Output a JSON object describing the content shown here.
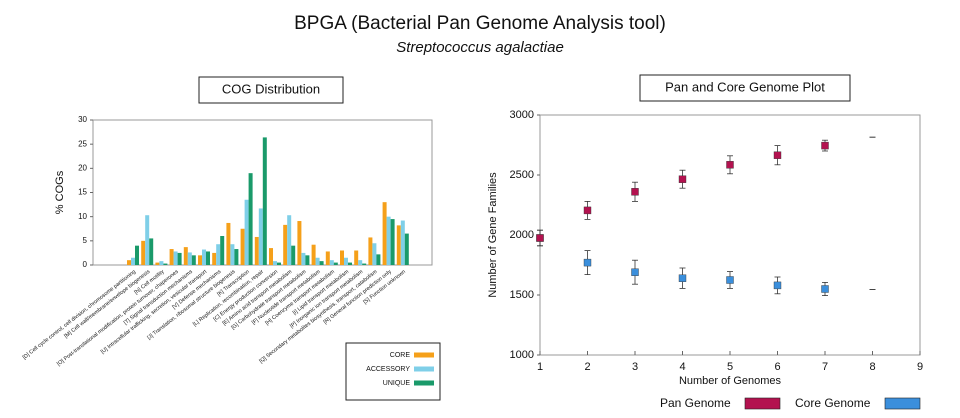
{
  "title": "BPGA (Bacterial Pan Genome Analysis tool)",
  "subtitle": "Streptococcus agalactiae",
  "chart_data": [
    {
      "type": "bar",
      "title": "COG Distribution",
      "y_label": "% COGs",
      "categories": [
        "[D] Cell cycle control, cell division, chromosome partitioning",
        "[M] Cell wall/membrane/envelope biogenesis",
        "[N] Cell motility",
        "[O] Post-translational modification, protein turnover, chaperones",
        "[T] Signal transduction mechanisms",
        "[U] Intracellular trafficking, secretion, vesicular transport",
        "[V] Defense mechanisms",
        "[J] Translation, ribosomal structure biogenesis",
        "[K] Transcription",
        "[L] Replication, recombination, repair",
        "[C] Energy production conversion",
        "[E] Amino acid transport metabolism",
        "[G] Carbohydrate transport metabolism",
        "[F] Nucleotide transport metabolism",
        "[H] Coenzyme transport metabolism",
        "[I] Lipid transport metabolism",
        "[P] Inorganic ion transport metabolism",
        "[Q] Secondary metabolites biosynthesis, transport, catabolism",
        "[R] General function prediction only",
        "[S] Function unknown"
      ],
      "series": [
        {
          "name": "CORE",
          "color": "#f5a01a",
          "values": [
            1.0,
            5.0,
            0.5,
            3.3,
            3.7,
            2.0,
            2.5,
            8.7,
            7.5,
            5.8,
            3.5,
            8.3,
            9.1,
            4.2,
            2.8,
            3.0,
            3.0,
            5.7,
            13.0,
            8.2
          ]
        },
        {
          "name": "ACCESSORY",
          "color": "#7fcfe8",
          "values": [
            1.5,
            10.3,
            0.8,
            2.8,
            2.6,
            3.2,
            4.3,
            4.3,
            13.5,
            11.7,
            0.8,
            10.3,
            2.5,
            1.5,
            1.0,
            1.5,
            1.0,
            4.5,
            10.0,
            9.2
          ]
        },
        {
          "name": "UNIQUE",
          "color": "#1a9a6a",
          "values": [
            4.0,
            5.5,
            0.3,
            2.5,
            2.0,
            2.8,
            6.0,
            3.3,
            19.0,
            26.4,
            0.5,
            4.0,
            2.0,
            0.8,
            0.5,
            0.5,
            0.3,
            2.2,
            9.5,
            6.5
          ]
        }
      ],
      "ylim": [
        0,
        30
      ],
      "yticks": [
        0,
        5,
        10,
        15,
        20,
        25,
        30
      ],
      "legend": "lower right"
    },
    {
      "type": "scatter",
      "title": "Pan and Core Genome Plot",
      "x_label": "Number of Genomes",
      "y_label": "Number of Gene Families",
      "x": [
        1,
        2,
        3,
        4,
        5,
        6,
        7,
        8
      ],
      "series": [
        {
          "name": "Pan Genome",
          "color": "#b3124f",
          "values": [
            1975,
            2205,
            2360,
            2465,
            2585,
            2665,
            2745,
            2815
          ],
          "errors": [
            65,
            75,
            80,
            75,
            75,
            80,
            45,
            0
          ]
        },
        {
          "name": "Core Genome",
          "color": "#3b8fdc",
          "values": [
            1975,
            1770,
            1690,
            1640,
            1625,
            1580,
            1550,
            1545
          ],
          "errors": [
            65,
            100,
            100,
            85,
            70,
            70,
            55,
            0
          ]
        }
      ],
      "xlim": [
        1,
        9
      ],
      "xticks": [
        1,
        2,
        3,
        4,
        5,
        6,
        7,
        8,
        9
      ],
      "ylim": [
        1000,
        3000
      ],
      "yticks": [
        1000,
        1500,
        2000,
        2500,
        3000
      ],
      "legend": "bottom"
    }
  ]
}
